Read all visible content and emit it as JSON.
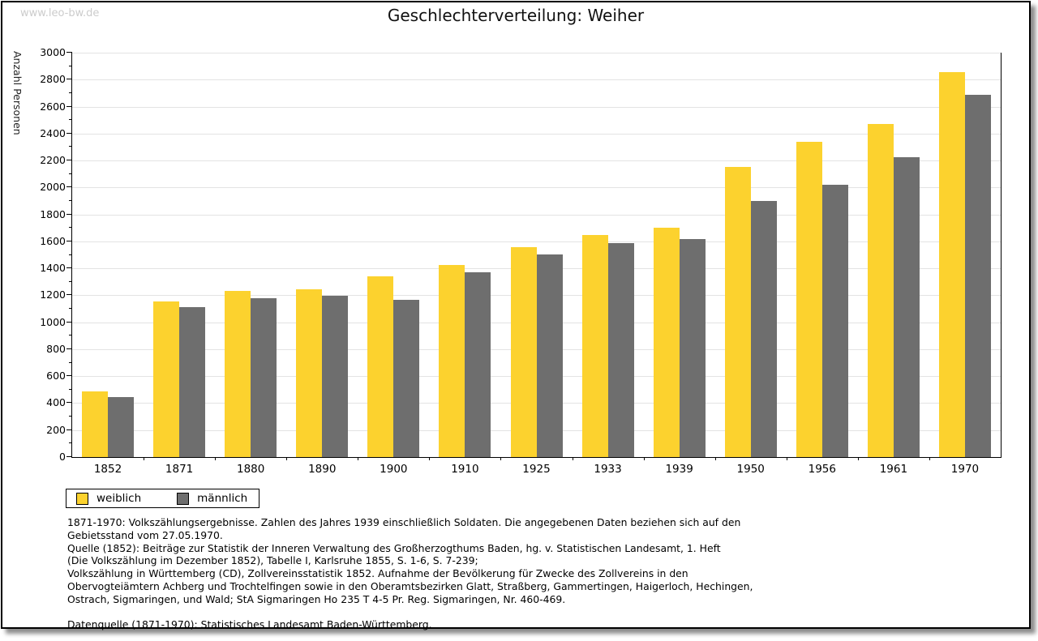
{
  "page": {
    "watermark": "www.leo-bw.de",
    "title": "Geschlechterverteilung: Weiher"
  },
  "chart_data": {
    "type": "bar",
    "title": "Geschlechterverteilung: Weiher",
    "xlabel": "",
    "ylabel": "Anzahl Personen",
    "ylim": [
      0,
      3000
    ],
    "y_major_step": 200,
    "y_minor_step": 100,
    "grid": true,
    "legend_position": "bottom-left",
    "categories": [
      "1852",
      "1871",
      "1880",
      "1890",
      "1900",
      "1910",
      "1925",
      "1933",
      "1939",
      "1950",
      "1956",
      "1961",
      "1970"
    ],
    "series": [
      {
        "name": "weiblich",
        "color": "#FCD22E",
        "values": [
          490,
          1155,
          1230,
          1245,
          1340,
          1425,
          1560,
          1650,
          1700,
          2150,
          2340,
          2470,
          2855
        ]
      },
      {
        "name": "männlich",
        "color": "#6E6E6E",
        "values": [
          445,
          1110,
          1180,
          1195,
          1165,
          1370,
          1505,
          1590,
          1615,
          1900,
          2020,
          2225,
          2685
        ]
      }
    ],
    "colors": {
      "gridline": "#e3e3e3",
      "axis": "#000000"
    }
  },
  "footnotes": {
    "block1": "1871-1970: Volkszählungsergebnisse. Zahlen des Jahres 1939 einschließlich Soldaten. Die angegebenen Daten beziehen sich auf den\nGebietsstand vom 27.05.1970.",
    "block2": "Quelle (1852): Beiträge zur Statistik der Inneren Verwaltung des Großherzogthums Baden, hg. v. Statistischen Landesamt, 1. Heft\n(Die Volkszählung im Dezember 1852), Tabelle I, Karlsruhe 1855, S. 1-6, S. 7-239;",
    "block3": "Volkszählung in Württemberg (CD), Zollvereinsstatistik 1852. Aufnahme der Bevölkerung für Zwecke des Zollvereins in den\nObervogteiämtern Achberg und Trochtelfingen sowie in den Oberamtsbezirken Glatt, Straßberg, Gammertingen, Haigerloch, Hechingen,\nOstrach, Sigmaringen, und Wald; StA Sigmaringen Ho 235 T 4-5 Pr. Reg. Sigmaringen, Nr. 460-469.",
    "datasource": "Datenquelle (1871-1970): Statistisches Landesamt Baden-Württemberg."
  }
}
